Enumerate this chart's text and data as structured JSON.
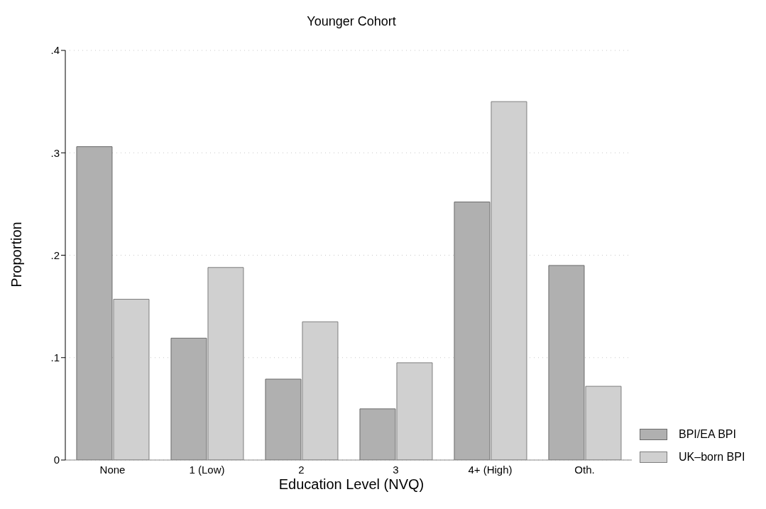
{
  "chart_data": {
    "type": "bar",
    "title": "Younger Cohort",
    "xlabel": "Education Level (NVQ)",
    "ylabel": "Proportion",
    "categories": [
      "None",
      "1 (Low)",
      "2",
      "3",
      "4+ (High)",
      "Oth."
    ],
    "series": [
      {
        "name": "BPI/EA BPI",
        "color": "#b0b0b0",
        "values": [
          0.306,
          0.119,
          0.079,
          0.05,
          0.252,
          0.19
        ]
      },
      {
        "name": "UK–born BPI",
        "color": "#d0d0d0",
        "values": [
          0.157,
          0.188,
          0.135,
          0.095,
          0.35,
          0.072
        ]
      }
    ],
    "ylim": [
      0,
      0.4
    ],
    "yticks": [
      0,
      {
        "value": 0.1,
        "label": ".1"
      },
      {
        "value": 0.2,
        "label": ".2"
      },
      {
        "value": 0.3,
        "label": ".3"
      },
      {
        "value": 0.4,
        "label": ".4"
      }
    ],
    "grid": "y",
    "legend": "bottom right"
  }
}
